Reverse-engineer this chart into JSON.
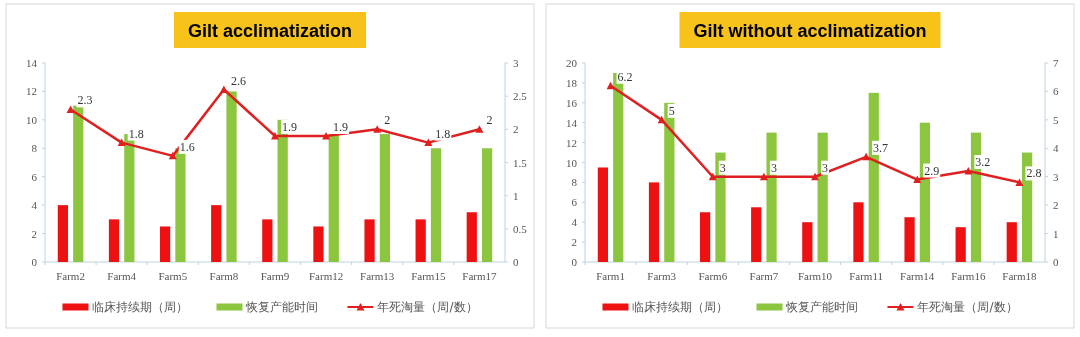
{
  "chart_data": [
    {
      "type": "bar",
      "title": "Gilt  acclimatization",
      "categories": [
        "Farm2",
        "Farm4",
        "Farm5",
        "Farm8",
        "Farm9",
        "Farm12",
        "Farm13",
        "Farm15",
        "Farm17"
      ],
      "series": [
        {
          "name": "临床持续期（周）",
          "color": "#ee1111",
          "values": [
            4,
            3,
            2.5,
            4,
            3,
            2.5,
            3,
            3,
            3.5
          ]
        },
        {
          "name": "恢复产能时间",
          "color": "#8cc63f",
          "values": [
            11,
            9,
            8,
            12,
            10,
            9,
            9,
            8,
            8
          ]
        },
        {
          "name": "年死淘量（周/数）",
          "type": "line",
          "axis": "y2",
          "color": "#e02020",
          "marker": "triangle",
          "values": [
            2.3,
            1.8,
            1.6,
            2.6,
            1.9,
            1.9,
            2,
            1.8,
            2
          ],
          "value_labels": [
            "2.3",
            "1.8",
            "1.6",
            "2.6",
            "1.9",
            "1.9",
            "2",
            "1.8",
            "2"
          ]
        }
      ],
      "ylim": [
        0,
        14
      ],
      "yticks": [
        0,
        2,
        4,
        6,
        8,
        10,
        12,
        14
      ],
      "y2lim": [
        0,
        3
      ],
      "y2ticks": [
        0,
        0.5,
        1,
        1.5,
        2,
        2.5,
        3
      ],
      "legend": "bottom"
    },
    {
      "type": "bar",
      "title": "Gilt without acclimatization",
      "categories": [
        "Farm1",
        "Farm3",
        "Farm6",
        "Farm7",
        "Farm10",
        "Farm11",
        "Farm14",
        "Farm16",
        "Farm18"
      ],
      "series": [
        {
          "name": "临床持续期（周）",
          "color": "#ee1111",
          "values": [
            9.5,
            8,
            5,
            5.5,
            4,
            6,
            4.5,
            3.5,
            4
          ]
        },
        {
          "name": "恢复产能时间",
          "color": "#8cc63f",
          "values": [
            19,
            16,
            11,
            13,
            13,
            17,
            14,
            13,
            11
          ]
        },
        {
          "name": "年死淘量（周/数）",
          "type": "line",
          "axis": "y2",
          "color": "#e02020",
          "marker": "triangle",
          "values": [
            6.2,
            5,
            3,
            3,
            3,
            3.7,
            2.9,
            3.2,
            2.8
          ],
          "value_labels": [
            "6.2",
            "5",
            "3",
            "3",
            "3",
            "3.7",
            "2.9",
            "3.2",
            "2.8"
          ]
        }
      ],
      "ylim": [
        0,
        20
      ],
      "yticks": [
        0,
        2,
        4,
        6,
        8,
        10,
        12,
        14,
        16,
        18,
        20
      ],
      "y2lim": [
        0,
        7
      ],
      "y2ticks": [
        0,
        1,
        2,
        3,
        4,
        5,
        6,
        7
      ],
      "legend": "bottom"
    }
  ]
}
